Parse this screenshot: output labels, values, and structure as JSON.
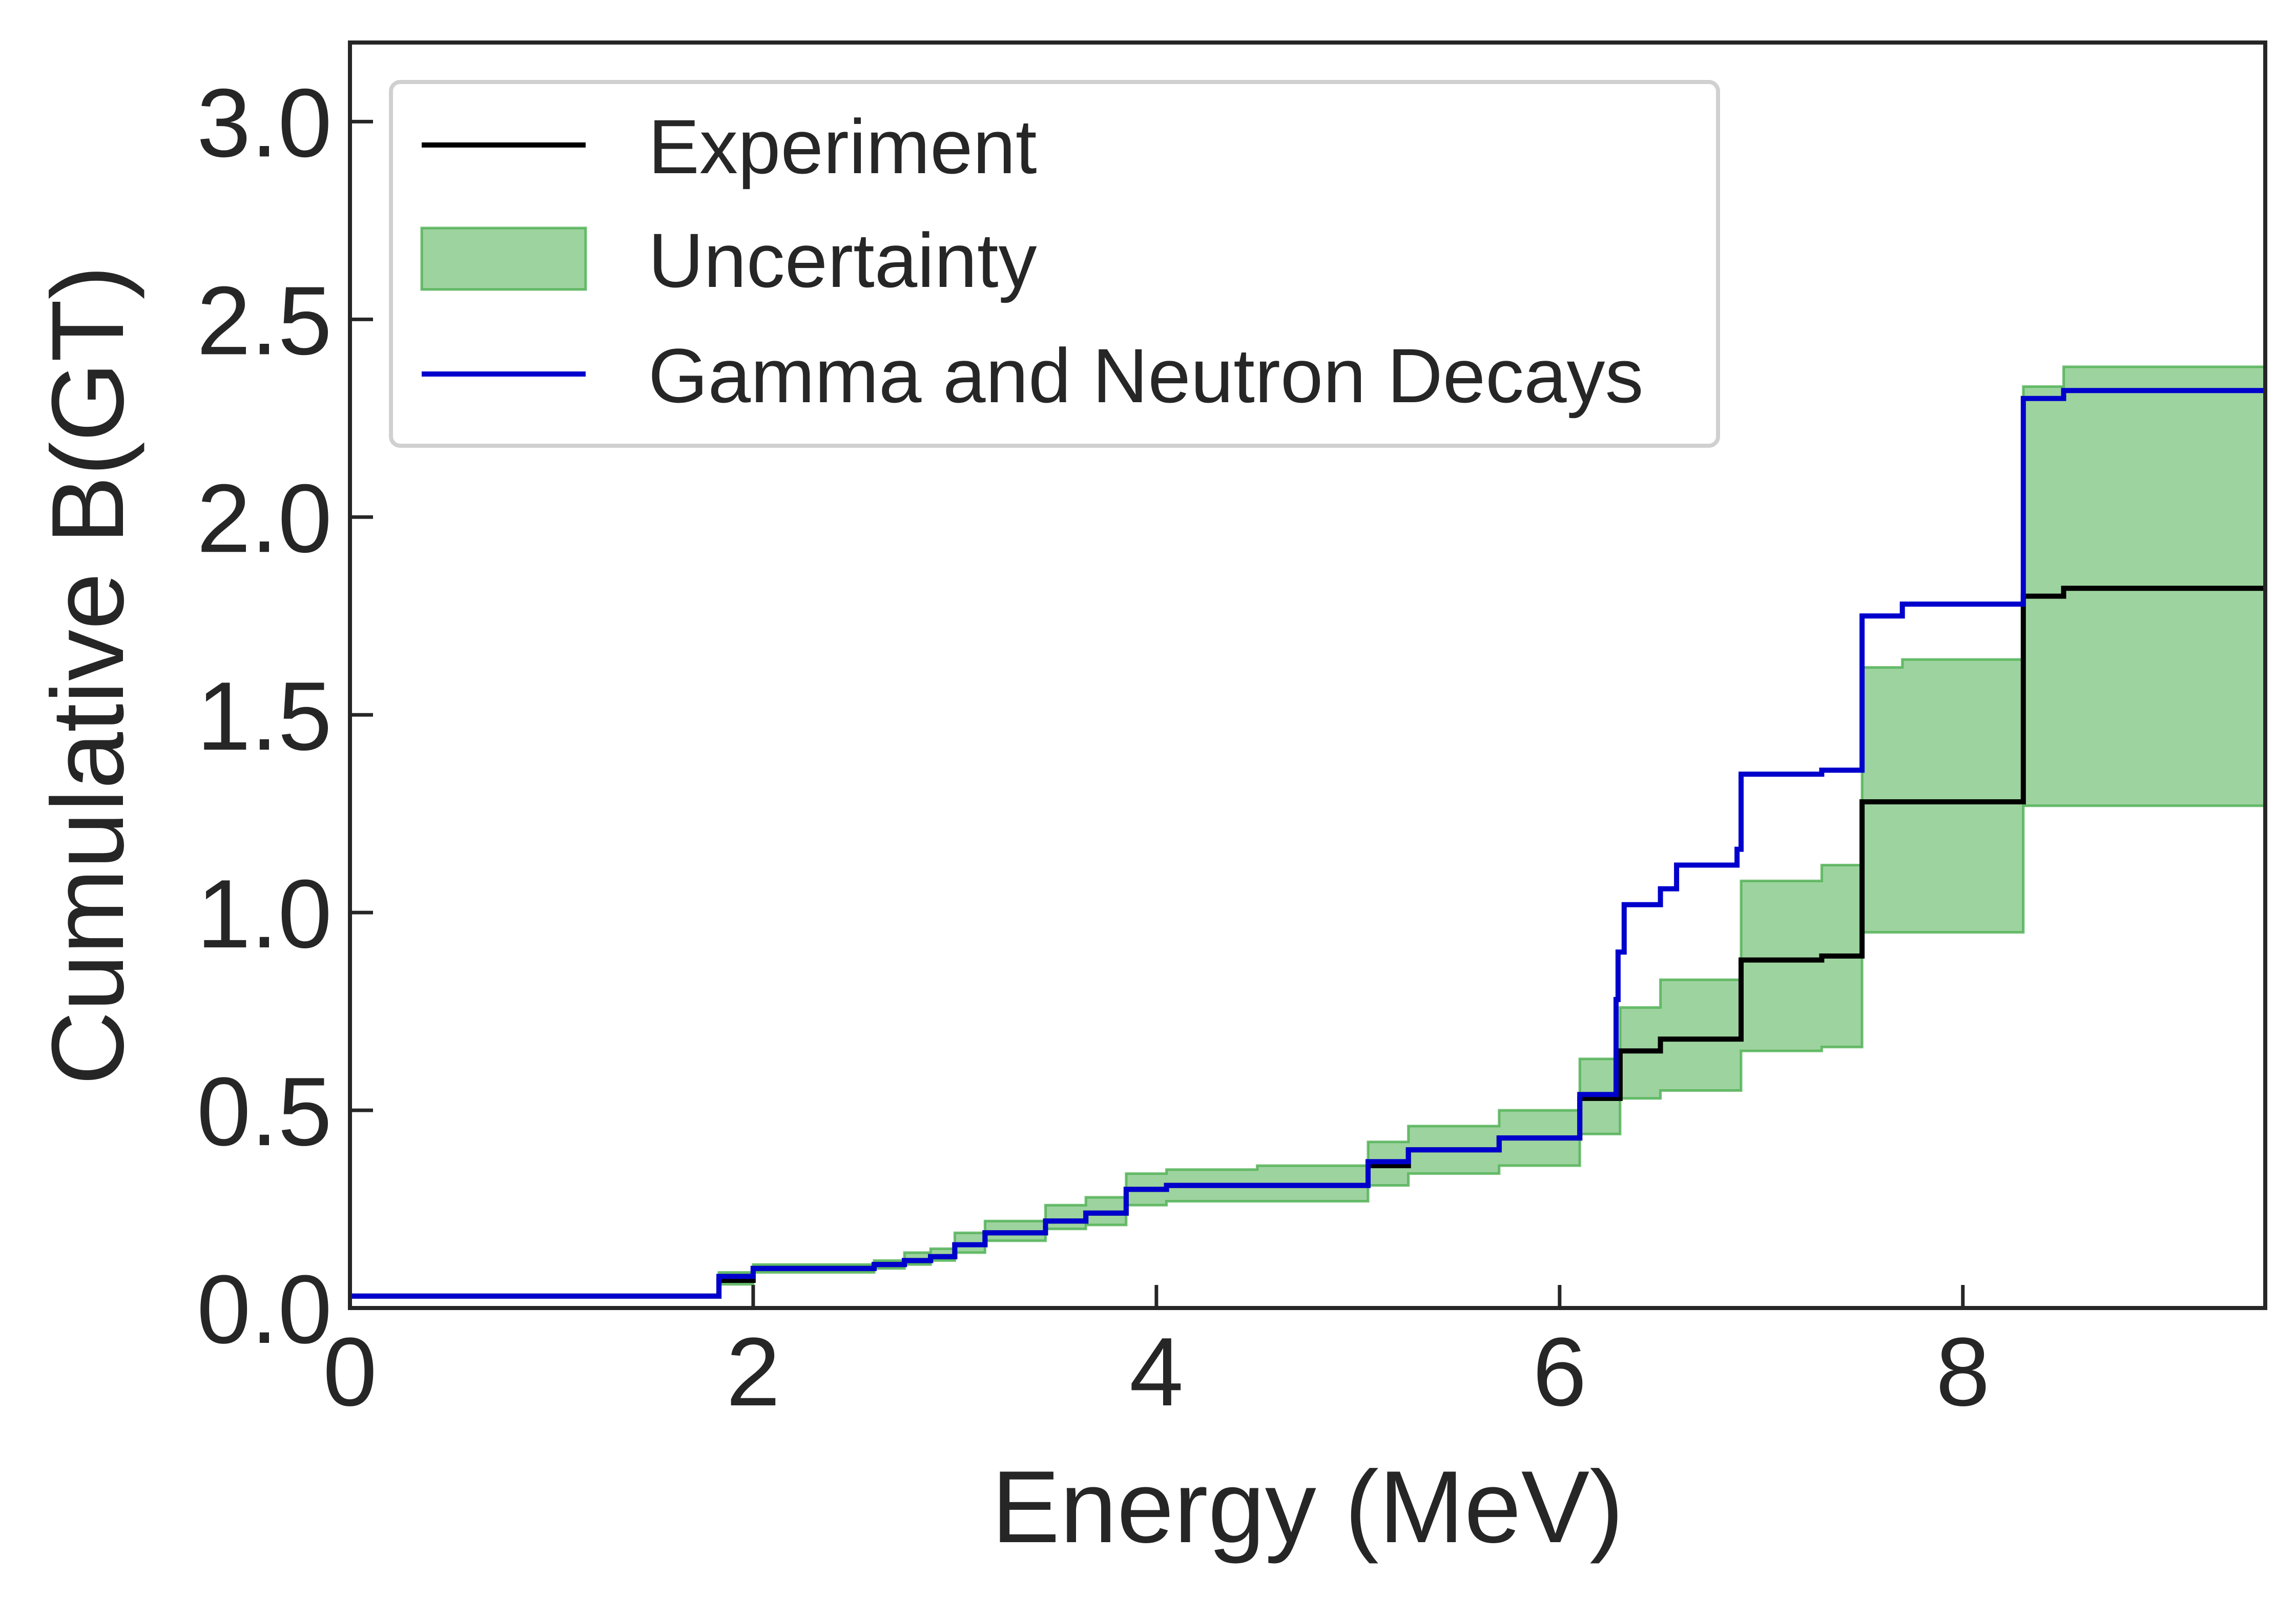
{
  "chart_data": {
    "type": "line",
    "title": "",
    "xlabel": "Energy (MeV)",
    "ylabel": "Cumulative B(GT)",
    "xlim": [
      0,
      9.5
    ],
    "ylim": [
      0,
      3.2
    ],
    "xticks": [
      0,
      2,
      4,
      6,
      8
    ],
    "yticks": [
      0.0,
      0.5,
      1.0,
      1.5,
      2.0,
      2.5,
      3.0
    ],
    "xtick_labels": [
      "0",
      "2",
      "4",
      "6",
      "8"
    ],
    "ytick_labels": [
      "0.0",
      "0.5",
      "1.0",
      "1.5",
      "2.0",
      "2.5",
      "3.0"
    ],
    "grid": false,
    "legend_position": "top-left",
    "series": [
      {
        "name": "Experiment",
        "kind": "step",
        "color": "#000000",
        "x": [
          0,
          1.83,
          1.83,
          2.0,
          2.0,
          2.6,
          2.6,
          2.75,
          2.75,
          2.88,
          2.88,
          3.0,
          3.0,
          3.15,
          3.15,
          3.45,
          3.45,
          3.65,
          3.65,
          3.85,
          3.85,
          4.05,
          4.05,
          4.5,
          4.5,
          5.05,
          5.05,
          5.25,
          5.25,
          5.7,
          5.7,
          6.1,
          6.1,
          6.3,
          6.3,
          6.5,
          6.5,
          6.9,
          6.9,
          7.3,
          7.3,
          7.5,
          7.5,
          8.3,
          8.3,
          8.5,
          8.5,
          9.5
        ],
        "y": [
          0.03,
          0.03,
          0.07,
          0.07,
          0.1,
          0.1,
          0.11,
          0.11,
          0.12,
          0.12,
          0.13,
          0.13,
          0.16,
          0.16,
          0.19,
          0.19,
          0.22,
          0.22,
          0.24,
          0.24,
          0.3,
          0.3,
          0.31,
          0.31,
          0.31,
          0.31,
          0.36,
          0.36,
          0.4,
          0.4,
          0.43,
          0.43,
          0.53,
          0.53,
          0.65,
          0.65,
          0.68,
          0.68,
          0.88,
          0.88,
          0.89,
          0.89,
          1.28,
          1.28,
          1.8,
          1.8,
          1.82,
          1.82
        ]
      },
      {
        "name": "Uncertainty",
        "kind": "band",
        "color": "#4caf50",
        "x": [
          0,
          1.83,
          1.83,
          2.0,
          2.0,
          2.6,
          2.6,
          2.75,
          2.75,
          2.88,
          2.88,
          3.0,
          3.0,
          3.15,
          3.15,
          3.45,
          3.45,
          3.65,
          3.65,
          3.85,
          3.85,
          4.05,
          4.05,
          4.5,
          4.5,
          5.05,
          5.05,
          5.25,
          5.25,
          5.7,
          5.7,
          6.1,
          6.1,
          6.3,
          6.3,
          6.5,
          6.5,
          6.9,
          6.9,
          7.3,
          7.3,
          7.5,
          7.5,
          7.7,
          7.7,
          8.3,
          8.3,
          8.5,
          8.5,
          9.5
        ],
        "lower": [
          0.03,
          0.03,
          0.06,
          0.06,
          0.09,
          0.09,
          0.1,
          0.1,
          0.11,
          0.11,
          0.12,
          0.12,
          0.14,
          0.14,
          0.17,
          0.17,
          0.2,
          0.2,
          0.21,
          0.21,
          0.26,
          0.26,
          0.27,
          0.27,
          0.27,
          0.27,
          0.31,
          0.31,
          0.34,
          0.34,
          0.36,
          0.36,
          0.44,
          0.44,
          0.53,
          0.53,
          0.55,
          0.55,
          0.65,
          0.65,
          0.66,
          0.66,
          0.95,
          0.95,
          0.95,
          0.95,
          1.27,
          1.27,
          1.27,
          1.27
        ],
        "upper": [
          0.03,
          0.03,
          0.09,
          0.09,
          0.11,
          0.11,
          0.12,
          0.12,
          0.14,
          0.14,
          0.15,
          0.15,
          0.19,
          0.19,
          0.22,
          0.22,
          0.26,
          0.26,
          0.28,
          0.28,
          0.34,
          0.34,
          0.35,
          0.35,
          0.36,
          0.36,
          0.42,
          0.42,
          0.46,
          0.46,
          0.5,
          0.5,
          0.63,
          0.63,
          0.76,
          0.76,
          0.83,
          0.83,
          1.08,
          1.08,
          1.12,
          1.12,
          1.62,
          1.62,
          1.64,
          1.64,
          2.33,
          2.33,
          2.38,
          2.38
        ]
      },
      {
        "name": "Gamma and Neutron Decays",
        "kind": "step",
        "color": "#0000cc",
        "x": [
          0,
          1.83,
          1.83,
          2.0,
          2.0,
          2.6,
          2.6,
          2.75,
          2.75,
          2.88,
          2.88,
          3.0,
          3.0,
          3.15,
          3.15,
          3.45,
          3.45,
          3.65,
          3.65,
          3.85,
          3.85,
          4.05,
          4.05,
          4.5,
          4.5,
          5.05,
          5.05,
          5.25,
          5.25,
          5.7,
          5.7,
          6.1,
          6.1,
          6.28,
          6.28,
          6.29,
          6.29,
          6.32,
          6.32,
          6.5,
          6.5,
          6.58,
          6.58,
          6.88,
          6.88,
          6.9,
          6.9,
          7.3,
          7.3,
          7.5,
          7.5,
          7.7,
          7.7,
          8.3,
          8.3,
          8.5,
          8.5,
          9.5
        ],
        "y": [
          0.03,
          0.03,
          0.08,
          0.08,
          0.1,
          0.1,
          0.11,
          0.11,
          0.12,
          0.12,
          0.13,
          0.13,
          0.16,
          0.16,
          0.19,
          0.19,
          0.22,
          0.22,
          0.24,
          0.24,
          0.3,
          0.3,
          0.31,
          0.31,
          0.31,
          0.31,
          0.37,
          0.37,
          0.4,
          0.4,
          0.43,
          0.43,
          0.54,
          0.54,
          0.78,
          0.78,
          0.9,
          0.9,
          1.02,
          1.02,
          1.06,
          1.06,
          1.12,
          1.12,
          1.16,
          1.16,
          1.35,
          1.35,
          1.36,
          1.36,
          1.75,
          1.75,
          1.78,
          1.78,
          2.3,
          2.3,
          2.32,
          2.32
        ]
      }
    ]
  }
}
